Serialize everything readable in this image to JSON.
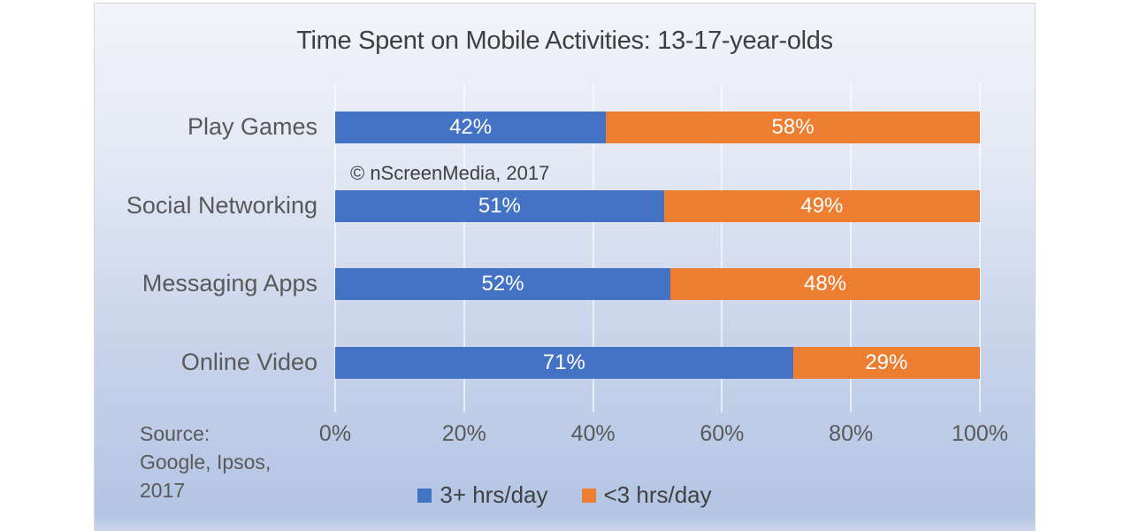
{
  "title": "Time Spent on Mobile Activities: 13-17-year-olds",
  "annotation": "© nScreenMedia, 2017",
  "source": {
    "line1": "Source:",
    "line2": "Google, Ipsos,",
    "line3": "2017"
  },
  "chart_data": {
    "type": "bar",
    "orientation": "horizontal",
    "stacked": true,
    "title": "Time Spent on Mobile Activities: 13-17-year-olds",
    "categories": [
      "Play Games",
      "Social Networking",
      "Messaging Apps",
      "Online Video"
    ],
    "series": [
      {
        "name": "3+ hrs/day",
        "color": "#4472C4",
        "values": [
          42,
          51,
          52,
          71
        ]
      },
      {
        "name": "<3 hrs/day",
        "color": "#ED7D31",
        "values": [
          58,
          49,
          48,
          29
        ]
      }
    ],
    "value_suffix": "%",
    "xlim": [
      0,
      100
    ],
    "x_ticks": [
      "0%",
      "20%",
      "40%",
      "60%",
      "80%",
      "100%"
    ],
    "grid": true,
    "legend_position": "bottom",
    "background": {
      "top": "#f3f4fa",
      "bottom": "#b3c5e4"
    },
    "label_color": "#ffffff"
  }
}
